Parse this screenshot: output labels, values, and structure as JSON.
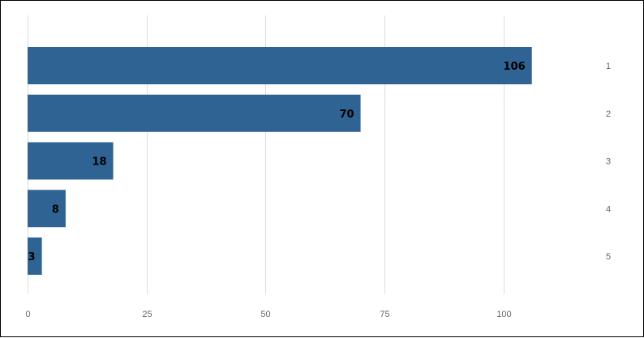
{
  "chart_data": {
    "type": "bar",
    "orientation": "horizontal",
    "categories": [
      "1",
      "2",
      "3",
      "4",
      "5"
    ],
    "values": [
      106,
      70,
      18,
      8,
      3
    ],
    "title": "",
    "xlabel": "",
    "ylabel": "",
    "xlim": [
      0,
      115
    ],
    "x_ticks": [
      0,
      25,
      50,
      75,
      100
    ],
    "category_axis_position": "right",
    "grid": true,
    "legend": "none",
    "bar_color": "#2e6393",
    "data_labels": true
  }
}
